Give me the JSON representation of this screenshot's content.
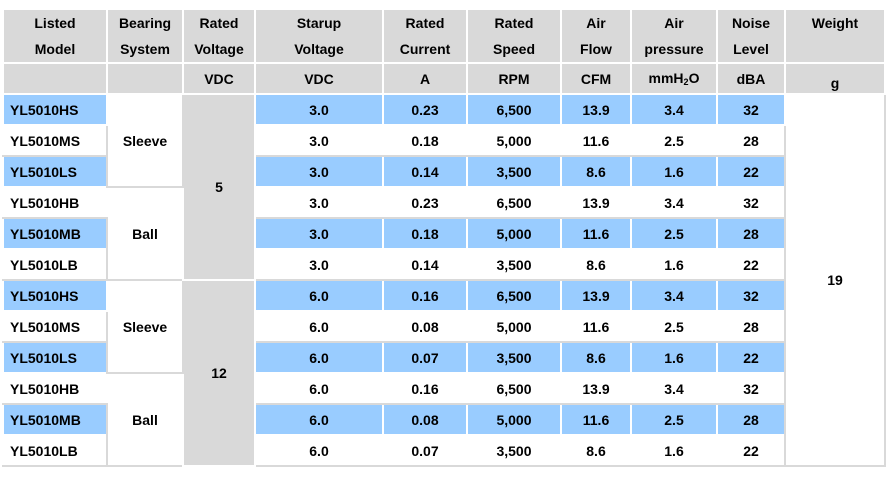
{
  "headers": [
    {
      "line1": "Listed",
      "line2": "Model",
      "unit": ""
    },
    {
      "line1": "Bearing",
      "line2": "System",
      "unit": ""
    },
    {
      "line1": "Rated",
      "line2": "Voltage",
      "unit": "VDC"
    },
    {
      "line1": "Starup",
      "line2": "Voltage",
      "unit": "VDC"
    },
    {
      "line1": "Rated",
      "line2": "Current",
      "unit": "A"
    },
    {
      "line1": "Rated",
      "line2": "Speed",
      "unit": "RPM"
    },
    {
      "line1": "Air",
      "line2": "Flow",
      "unit": "CFM"
    },
    {
      "line1": "Air",
      "line2": "pressure",
      "unit_main": "mmH",
      "unit_sub": "2",
      "unit_end": "O"
    },
    {
      "line1": "Noise",
      "line2": "Level",
      "unit": "dBA"
    },
    {
      "line1": "Weight",
      "line2": "",
      "unit": "g"
    }
  ],
  "bearing_groups": [
    "Sleeve",
    "Ball",
    "Sleeve",
    "Ball"
  ],
  "voltage_groups": [
    "5",
    "12"
  ],
  "weight": "19",
  "rows": [
    {
      "model": "YL5010HS",
      "startup": "3.0",
      "current": "0.23",
      "speed": "6,500",
      "flow": "13.9",
      "pressure": "3.4",
      "noise": "32"
    },
    {
      "model": "YL5010MS",
      "startup": "3.0",
      "current": "0.18",
      "speed": "5,000",
      "flow": "11.6",
      "pressure": "2.5",
      "noise": "28"
    },
    {
      "model": "YL5010LS",
      "startup": "3.0",
      "current": "0.14",
      "speed": "3,500",
      "flow": "8.6",
      "pressure": "1.6",
      "noise": "22"
    },
    {
      "model": "YL5010HB",
      "startup": "3.0",
      "current": "0.23",
      "speed": "6,500",
      "flow": "13.9",
      "pressure": "3.4",
      "noise": "32"
    },
    {
      "model": "YL5010MB",
      "startup": "3.0",
      "current": "0.18",
      "speed": "5,000",
      "flow": "11.6",
      "pressure": "2.5",
      "noise": "28"
    },
    {
      "model": "YL5010LB",
      "startup": "3.0",
      "current": "0.14",
      "speed": "3,500",
      "flow": "8.6",
      "pressure": "1.6",
      "noise": "22"
    },
    {
      "model": "YL5010HS",
      "startup": "6.0",
      "current": "0.16",
      "speed": "6,500",
      "flow": "13.9",
      "pressure": "3.4",
      "noise": "32"
    },
    {
      "model": "YL5010MS",
      "startup": "6.0",
      "current": "0.08",
      "speed": "5,000",
      "flow": "11.6",
      "pressure": "2.5",
      "noise": "28"
    },
    {
      "model": "YL5010LS",
      "startup": "6.0",
      "current": "0.07",
      "speed": "3,500",
      "flow": "8.6",
      "pressure": "1.6",
      "noise": "22"
    },
    {
      "model": "YL5010HB",
      "startup": "6.0",
      "current": "0.16",
      "speed": "6,500",
      "flow": "13.9",
      "pressure": "3.4",
      "noise": "32"
    },
    {
      "model": "YL5010MB",
      "startup": "6.0",
      "current": "0.08",
      "speed": "5,000",
      "flow": "11.6",
      "pressure": "2.5",
      "noise": "28"
    },
    {
      "model": "YL5010LB",
      "startup": "6.0",
      "current": "0.07",
      "speed": "3,500",
      "flow": "8.6",
      "pressure": "1.6",
      "noise": "22"
    }
  ],
  "colors": {
    "header": "#d9d9d9",
    "highlight_row": "#99ccff",
    "plain_row": "#ffffff"
  }
}
